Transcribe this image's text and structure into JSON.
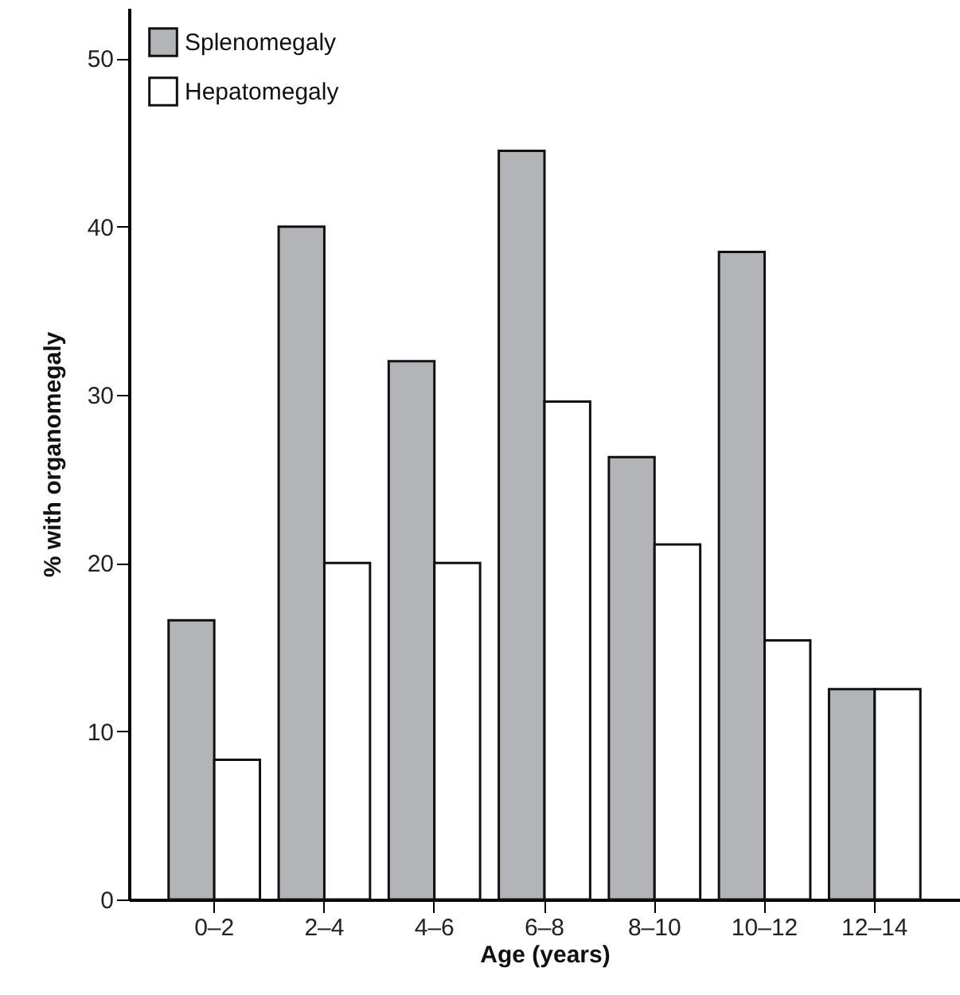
{
  "chart_data": {
    "type": "bar",
    "xlabel": "Age (years)",
    "ylabel": "% with organomegaly",
    "categories": [
      "0–2",
      "2–4",
      "4–6",
      "6–8",
      "8–10",
      "10–12",
      "12–14"
    ],
    "series": [
      {
        "name": "Splenomegaly",
        "color": "#b3b4b8",
        "values": [
          16.6,
          40,
          32,
          44.5,
          26.3,
          38.5,
          12.5
        ]
      },
      {
        "name": "Hepatomegaly",
        "color": "#ffffff",
        "values": [
          8.3,
          20,
          20,
          29.6,
          21.1,
          15.4,
          12.5
        ]
      }
    ],
    "ylim": [
      0,
      53
    ],
    "yticks": [
      0,
      10,
      20,
      30,
      40,
      50
    ],
    "grid": false,
    "legend": "top left"
  }
}
